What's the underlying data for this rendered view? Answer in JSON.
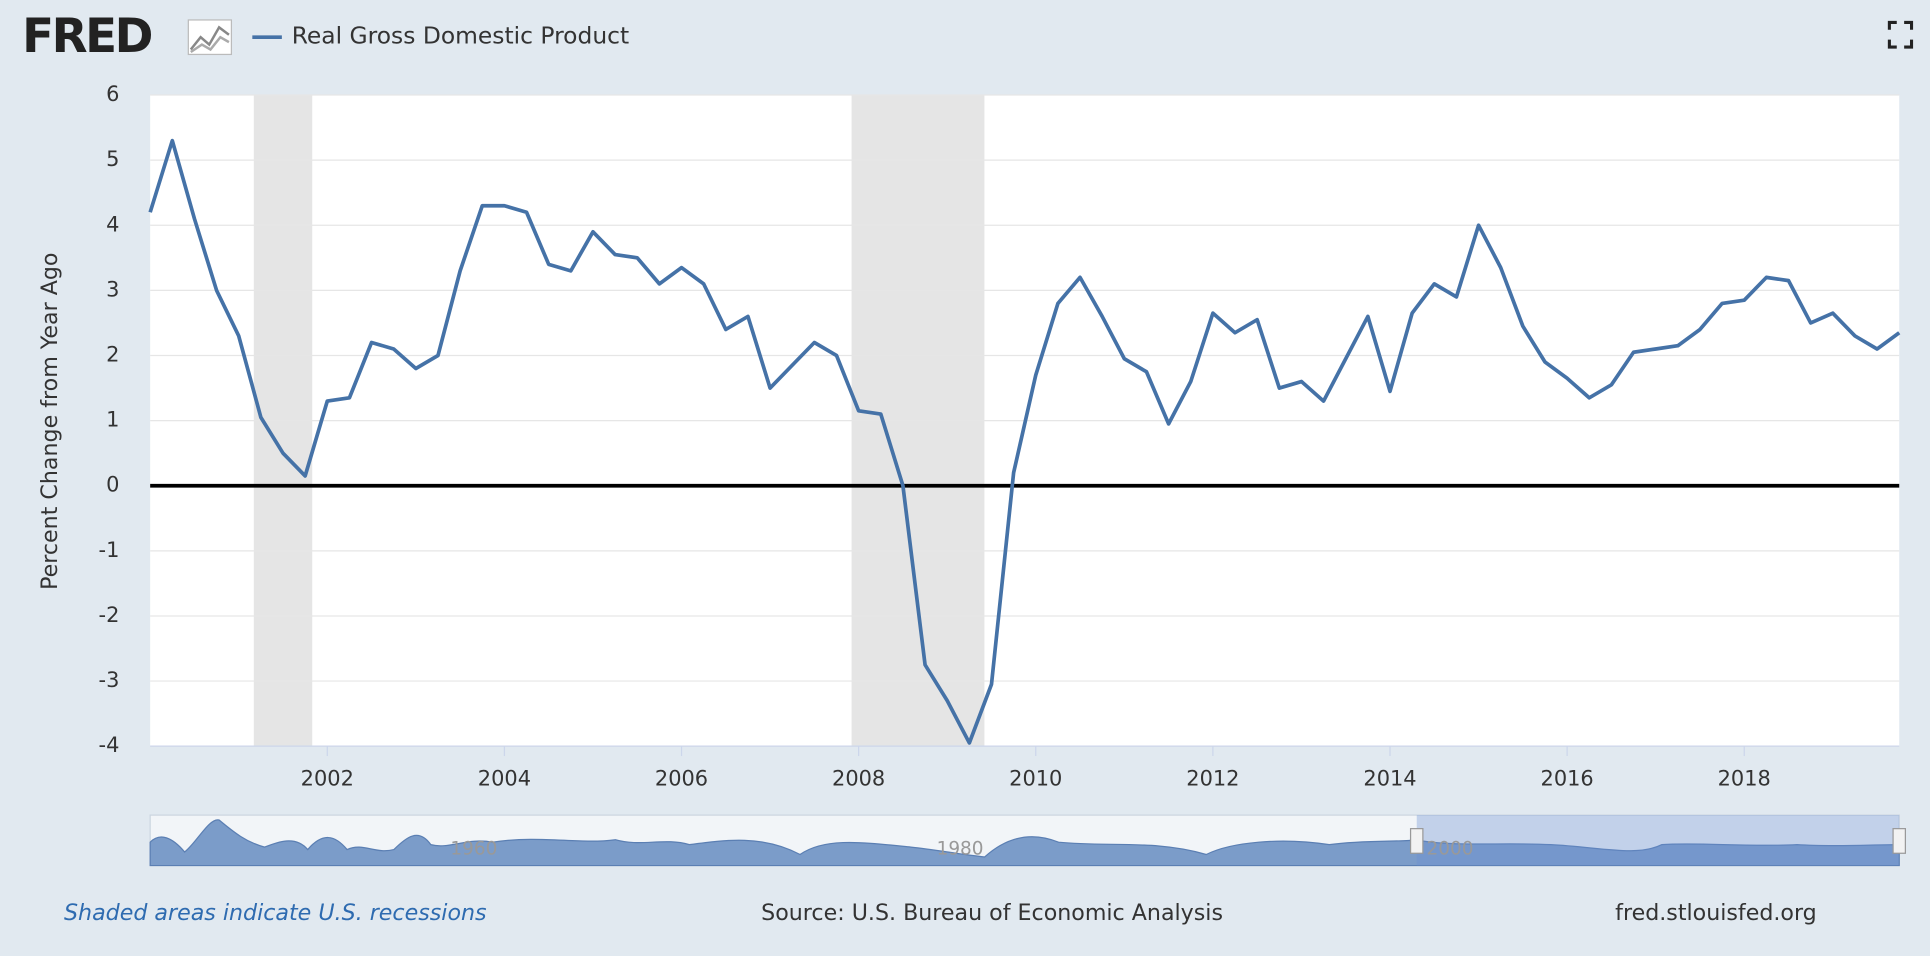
{
  "logo": "FRED",
  "chart_data": {
    "type": "line",
    "y_label": "Percent Change from Year Ago",
    "x": [
      2000,
      2000.25,
      2000.5,
      2000.75,
      2001,
      2001.25,
      2001.5,
      2001.75,
      2002,
      2002.25,
      2002.5,
      2002.75,
      2003,
      2003.25,
      2003.5,
      2003.75,
      2004,
      2004.25,
      2004.5,
      2004.75,
      2005,
      2005.25,
      2005.5,
      2005.75,
      2006,
      2006.25,
      2006.5,
      2006.75,
      2007,
      2007.25,
      2007.5,
      2007.75,
      2008,
      2008.25,
      2008.5,
      2008.75,
      2009,
      2009.25,
      2009.5,
      2009.75,
      2010,
      2010.25,
      2010.5,
      2010.75,
      2011,
      2011.25,
      2011.5,
      2011.75,
      2012,
      2012.25,
      2012.5,
      2012.75,
      2013,
      2013.25,
      2013.5,
      2013.75,
      2014,
      2014.25,
      2014.5,
      2014.75,
      2015,
      2015.25,
      2015.5,
      2015.75,
      2016,
      2016.25,
      2016.5,
      2016.75,
      2017,
      2017.25,
      2017.5,
      2017.75,
      2018,
      2018.25,
      2018.5,
      2018.75,
      2019,
      2019.25,
      2019.5,
      2019.75
    ],
    "series": [
      {
        "name": "Real Gross Domestic Product",
        "color": "#4572a7",
        "values": [
          4.2,
          5.3,
          4.1,
          3.0,
          2.3,
          1.05,
          0.5,
          0.15,
          1.3,
          1.35,
          2.2,
          2.1,
          1.8,
          2.0,
          3.3,
          4.3,
          4.3,
          4.2,
          3.4,
          3.3,
          3.9,
          3.55,
          3.5,
          3.1,
          3.35,
          3.1,
          2.4,
          2.6,
          1.5,
          1.85,
          2.2,
          2.0,
          1.15,
          1.1,
          0.0,
          -2.75,
          -3.3,
          -3.95,
          -3.05,
          0.2,
          1.7,
          2.8,
          3.2,
          2.6,
          1.95,
          1.75,
          0.95,
          1.6,
          2.65,
          2.35,
          2.55,
          1.5,
          1.6,
          1.3,
          1.95,
          2.6,
          1.45,
          2.65,
          3.1,
          2.9,
          4.0,
          3.35,
          2.45,
          1.9,
          1.65,
          1.35,
          1.55,
          2.05,
          2.1,
          2.15,
          2.4,
          2.8,
          2.85,
          3.2,
          3.15,
          2.5,
          2.65,
          2.3,
          2.1,
          2.35
        ]
      }
    ],
    "recessions": [
      [
        2001.17,
        2001.83
      ],
      [
        2007.92,
        2009.42
      ]
    ],
    "xlim": [
      2000,
      2019.75
    ],
    "xticks": [
      2002,
      2004,
      2006,
      2008,
      2010,
      2012,
      2014,
      2016,
      2018
    ],
    "ylim": [
      -4,
      6
    ],
    "yticks": [
      -4,
      -3,
      -2,
      -1,
      0,
      1,
      2,
      3,
      4,
      5,
      6
    ],
    "grid": true,
    "zero_line": true
  },
  "navigator": {
    "labels": [
      "1960",
      "1980",
      "2000"
    ]
  },
  "footer": {
    "note": "Shaded areas indicate U.S. recessions",
    "source": "Source: U.S. Bureau of Economic Analysis",
    "site": "fred.stlouisfed.org"
  }
}
